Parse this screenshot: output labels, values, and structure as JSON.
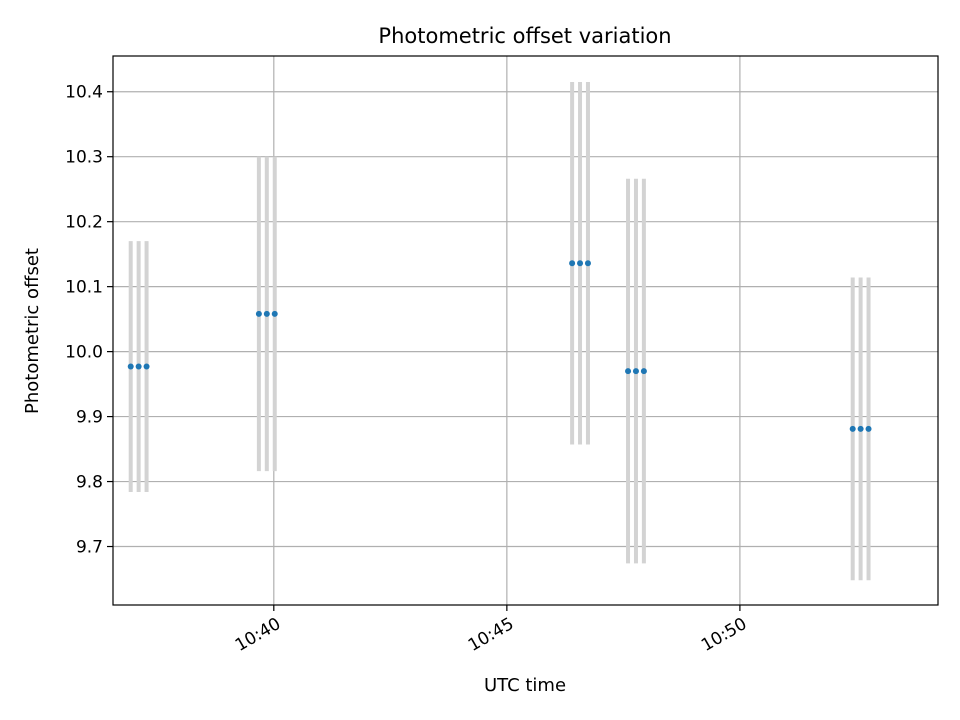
{
  "chart_data": {
    "type": "scatter",
    "title": "Photometric offset variation",
    "xlabel": "UTC time",
    "ylabel": "Photometric offset",
    "grid": true,
    "xlim": [
      36.55,
      54.25
    ],
    "ylim": [
      9.61,
      10.455
    ],
    "xticks": [
      {
        "value": 40,
        "label": "10:40"
      },
      {
        "value": 45,
        "label": "10:45"
      },
      {
        "value": 50,
        "label": "10:50"
      }
    ],
    "yticks": [
      {
        "value": 9.7,
        "label": "9.7"
      },
      {
        "value": 9.8,
        "label": "9.8"
      },
      {
        "value": 9.9,
        "label": "9.9"
      },
      {
        "value": 10.0,
        "label": "10.0"
      },
      {
        "value": 10.1,
        "label": "10.1"
      },
      {
        "value": 10.2,
        "label": "10.2"
      },
      {
        "value": 10.3,
        "label": "10.3"
      },
      {
        "value": 10.4,
        "label": "10.4"
      }
    ],
    "point_color": "#1f77b4",
    "errorbar_color": "#d3d3d3",
    "points": [
      {
        "x": 36.93,
        "y": 9.977,
        "err": 0.193
      },
      {
        "x": 37.1,
        "y": 9.977,
        "err": 0.193
      },
      {
        "x": 37.27,
        "y": 9.977,
        "err": 0.193
      },
      {
        "x": 39.68,
        "y": 10.058,
        "err": 0.242
      },
      {
        "x": 39.85,
        "y": 10.058,
        "err": 0.242
      },
      {
        "x": 40.02,
        "y": 10.058,
        "err": 0.242
      },
      {
        "x": 46.4,
        "y": 10.136,
        "err": 0.279
      },
      {
        "x": 46.57,
        "y": 10.136,
        "err": 0.279
      },
      {
        "x": 46.74,
        "y": 10.136,
        "err": 0.279
      },
      {
        "x": 47.6,
        "y": 9.97,
        "err": 0.296
      },
      {
        "x": 47.77,
        "y": 9.97,
        "err": 0.296
      },
      {
        "x": 47.94,
        "y": 9.97,
        "err": 0.296
      },
      {
        "x": 52.42,
        "y": 9.881,
        "err": 0.233
      },
      {
        "x": 52.59,
        "y": 9.881,
        "err": 0.233
      },
      {
        "x": 52.76,
        "y": 9.881,
        "err": 0.233
      }
    ]
  }
}
